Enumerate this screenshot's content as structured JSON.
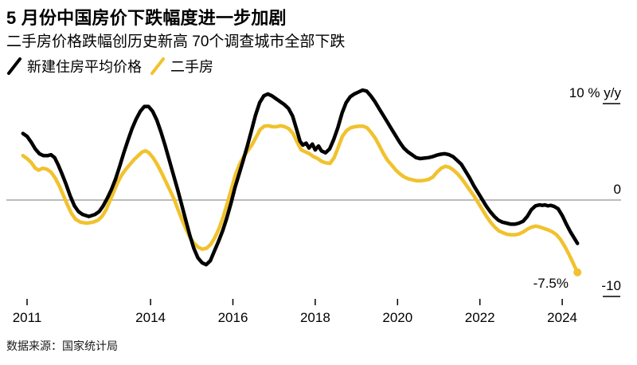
{
  "header": {
    "title": "5 月份中国房价下跌幅度进一步加剧",
    "subtitle": "二手房价格跌幅创历史新高 70个调查城市全部下跌"
  },
  "legend": [
    {
      "label": "新建住房平均价格",
      "color": "#000000"
    },
    {
      "label": "二手房",
      "color": "#f1c22e"
    }
  ],
  "source": "数据来源：国家统计局",
  "colors": {
    "new_home_line": "#000000",
    "secondhand_line": "#f1c22e",
    "zero_line": "#7a7a7a",
    "tick": "#000000",
    "background": "#ffffff"
  },
  "chart_data": {
    "type": "line",
    "title": "5 月份中国房价下跌幅度进一步加剧",
    "subtitle": "二手房价格跌幅创历史新高 70个调查城市全部下跌",
    "xlabel": "",
    "ylabel": "% y/y",
    "grid": false,
    "legend_position": "top-left",
    "xlim": [
      2010.9,
      2024.6
    ],
    "y_axis": {
      "ylim": [
        -10,
        10
      ],
      "ticks": [
        {
          "value": 10,
          "label": "10 % y/y",
          "tick_mark": true
        },
        {
          "value": 0,
          "label": "0",
          "tick_mark": false
        },
        {
          "value": -10,
          "label": "-10",
          "tick_mark": true
        }
      ]
    },
    "x_ticks": [
      2011,
      2014,
      2016,
      2018,
      2020,
      2022,
      2024
    ],
    "annotation": {
      "text": "-7.5%",
      "series": "二手房",
      "year": 2024.37,
      "value": -7.5
    },
    "series": [
      {
        "name": "二手房",
        "color": "#f1c22e",
        "end_dot": true,
        "points": [
          [
            2010.9,
            4.6
          ],
          [
            2011.0,
            4.3
          ],
          [
            2011.1,
            3.9
          ],
          [
            2011.2,
            3.3
          ],
          [
            2011.28,
            3.1
          ],
          [
            2011.38,
            3.3
          ],
          [
            2011.48,
            3.2
          ],
          [
            2011.58,
            2.9
          ],
          [
            2011.68,
            2.3
          ],
          [
            2011.78,
            1.5
          ],
          [
            2011.88,
            0.5
          ],
          [
            2011.98,
            -0.5
          ],
          [
            2012.08,
            -1.4
          ],
          [
            2012.18,
            -2.0
          ],
          [
            2012.3,
            -2.3
          ],
          [
            2012.45,
            -2.4
          ],
          [
            2012.6,
            -2.3
          ],
          [
            2012.72,
            -2.1
          ],
          [
            2012.82,
            -1.7
          ],
          [
            2012.92,
            -1.0
          ],
          [
            2013.0,
            -0.2
          ],
          [
            2013.1,
            0.8
          ],
          [
            2013.2,
            1.8
          ],
          [
            2013.3,
            2.6
          ],
          [
            2013.4,
            3.2
          ],
          [
            2013.5,
            3.7
          ],
          [
            2013.6,
            4.2
          ],
          [
            2013.7,
            4.6
          ],
          [
            2013.8,
            5.0
          ],
          [
            2013.88,
            5.1
          ],
          [
            2013.96,
            4.9
          ],
          [
            2014.06,
            4.4
          ],
          [
            2014.16,
            3.7
          ],
          [
            2014.26,
            2.9
          ],
          [
            2014.36,
            2.0
          ],
          [
            2014.46,
            1.1
          ],
          [
            2014.56,
            0.2
          ],
          [
            2014.66,
            -0.9
          ],
          [
            2014.76,
            -2.0
          ],
          [
            2014.86,
            -3.0
          ],
          [
            2014.96,
            -3.9
          ],
          [
            2015.06,
            -4.5
          ],
          [
            2015.16,
            -4.9
          ],
          [
            2015.26,
            -5.1
          ],
          [
            2015.36,
            -5.0
          ],
          [
            2015.46,
            -4.6
          ],
          [
            2015.56,
            -3.9
          ],
          [
            2015.66,
            -3.0
          ],
          [
            2015.76,
            -1.8
          ],
          [
            2015.86,
            -0.4
          ],
          [
            2015.96,
            1.1
          ],
          [
            2016.06,
            2.6
          ],
          [
            2016.16,
            3.7
          ],
          [
            2016.26,
            4.5
          ],
          [
            2016.36,
            5.1
          ],
          [
            2016.46,
            5.7
          ],
          [
            2016.56,
            6.5
          ],
          [
            2016.66,
            7.3
          ],
          [
            2016.76,
            7.65
          ],
          [
            2016.86,
            7.7
          ],
          [
            2016.96,
            7.6
          ],
          [
            2017.06,
            7.6
          ],
          [
            2017.16,
            7.7
          ],
          [
            2017.26,
            7.6
          ],
          [
            2017.36,
            7.4
          ],
          [
            2017.46,
            6.9
          ],
          [
            2017.56,
            6.0
          ],
          [
            2017.66,
            5.2
          ],
          [
            2017.76,
            5.0
          ],
          [
            2017.86,
            4.8
          ],
          [
            2017.96,
            4.5
          ],
          [
            2018.06,
            4.3
          ],
          [
            2018.16,
            4.0
          ],
          [
            2018.26,
            3.85
          ],
          [
            2018.36,
            3.8
          ],
          [
            2018.46,
            4.4
          ],
          [
            2018.56,
            5.5
          ],
          [
            2018.66,
            6.6
          ],
          [
            2018.76,
            7.2
          ],
          [
            2018.86,
            7.5
          ],
          [
            2018.96,
            7.6
          ],
          [
            2019.06,
            7.65
          ],
          [
            2019.16,
            7.65
          ],
          [
            2019.26,
            7.5
          ],
          [
            2019.36,
            7.0
          ],
          [
            2019.46,
            6.4
          ],
          [
            2019.56,
            5.6
          ],
          [
            2019.66,
            4.8
          ],
          [
            2019.76,
            4.1
          ],
          [
            2019.86,
            3.6
          ],
          [
            2019.96,
            3.1
          ],
          [
            2020.06,
            2.7
          ],
          [
            2020.16,
            2.4
          ],
          [
            2020.26,
            2.2
          ],
          [
            2020.36,
            2.1
          ],
          [
            2020.46,
            2.0
          ],
          [
            2020.56,
            2.0
          ],
          [
            2020.66,
            2.05
          ],
          [
            2020.76,
            2.15
          ],
          [
            2020.86,
            2.4
          ],
          [
            2020.96,
            2.9
          ],
          [
            2021.06,
            3.3
          ],
          [
            2021.16,
            3.5
          ],
          [
            2021.26,
            3.4
          ],
          [
            2021.36,
            3.1
          ],
          [
            2021.46,
            2.7
          ],
          [
            2021.56,
            2.2
          ],
          [
            2021.66,
            1.6
          ],
          [
            2021.76,
            1.0
          ],
          [
            2021.86,
            0.4
          ],
          [
            2021.96,
            -0.3
          ],
          [
            2022.06,
            -1.0
          ],
          [
            2022.16,
            -1.7
          ],
          [
            2022.26,
            -2.3
          ],
          [
            2022.36,
            -2.8
          ],
          [
            2022.46,
            -3.2
          ],
          [
            2022.56,
            -3.4
          ],
          [
            2022.66,
            -3.55
          ],
          [
            2022.76,
            -3.6
          ],
          [
            2022.86,
            -3.6
          ],
          [
            2022.96,
            -3.5
          ],
          [
            2023.06,
            -3.3
          ],
          [
            2023.16,
            -3.0
          ],
          [
            2023.26,
            -2.8
          ],
          [
            2023.36,
            -2.7
          ],
          [
            2023.46,
            -2.8
          ],
          [
            2023.56,
            -2.95
          ],
          [
            2023.66,
            -3.1
          ],
          [
            2023.76,
            -3.3
          ],
          [
            2023.86,
            -3.6
          ],
          [
            2023.96,
            -4.1
          ],
          [
            2024.06,
            -4.8
          ],
          [
            2024.16,
            -5.6
          ],
          [
            2024.26,
            -6.5
          ],
          [
            2024.37,
            -7.5
          ]
        ]
      },
      {
        "name": "新建住房平均价格",
        "color": "#000000",
        "end_dot": false,
        "points": [
          [
            2010.9,
            6.9
          ],
          [
            2011.0,
            6.6
          ],
          [
            2011.1,
            6.0
          ],
          [
            2011.2,
            5.3
          ],
          [
            2011.3,
            4.8
          ],
          [
            2011.4,
            4.6
          ],
          [
            2011.5,
            4.6
          ],
          [
            2011.58,
            4.7
          ],
          [
            2011.67,
            4.4
          ],
          [
            2011.75,
            3.7
          ],
          [
            2011.85,
            2.7
          ],
          [
            2011.95,
            1.6
          ],
          [
            2012.05,
            0.4
          ],
          [
            2012.15,
            -0.6
          ],
          [
            2012.25,
            -1.2
          ],
          [
            2012.35,
            -1.5
          ],
          [
            2012.5,
            -1.7
          ],
          [
            2012.65,
            -1.5
          ],
          [
            2012.75,
            -1.2
          ],
          [
            2012.85,
            -0.6
          ],
          [
            2012.95,
            0.2
          ],
          [
            2013.05,
            1.1
          ],
          [
            2013.15,
            2.2
          ],
          [
            2013.25,
            3.5
          ],
          [
            2013.35,
            4.9
          ],
          [
            2013.45,
            6.2
          ],
          [
            2013.55,
            7.4
          ],
          [
            2013.65,
            8.4
          ],
          [
            2013.75,
            9.2
          ],
          [
            2013.85,
            9.7
          ],
          [
            2013.95,
            9.7
          ],
          [
            2014.05,
            9.2
          ],
          [
            2014.15,
            8.3
          ],
          [
            2014.25,
            7.1
          ],
          [
            2014.35,
            5.7
          ],
          [
            2014.45,
            4.2
          ],
          [
            2014.55,
            2.7
          ],
          [
            2014.65,
            1.2
          ],
          [
            2014.75,
            -0.4
          ],
          [
            2014.85,
            -2.0
          ],
          [
            2014.95,
            -3.6
          ],
          [
            2015.05,
            -5.0
          ],
          [
            2015.15,
            -6.0
          ],
          [
            2015.25,
            -6.5
          ],
          [
            2015.35,
            -6.7
          ],
          [
            2015.45,
            -6.3
          ],
          [
            2015.55,
            -5.3
          ],
          [
            2015.65,
            -4.3
          ],
          [
            2015.75,
            -3.2
          ],
          [
            2015.85,
            -1.9
          ],
          [
            2015.95,
            -0.4
          ],
          [
            2016.05,
            1.3
          ],
          [
            2016.15,
            2.7
          ],
          [
            2016.25,
            4.1
          ],
          [
            2016.35,
            5.6
          ],
          [
            2016.45,
            7.2
          ],
          [
            2016.55,
            8.8
          ],
          [
            2016.65,
            10.1
          ],
          [
            2016.75,
            10.8
          ],
          [
            2016.85,
            11.0
          ],
          [
            2016.95,
            10.8
          ],
          [
            2017.05,
            10.5
          ],
          [
            2017.15,
            10.2
          ],
          [
            2017.25,
            9.9
          ],
          [
            2017.35,
            9.5
          ],
          [
            2017.45,
            8.7
          ],
          [
            2017.55,
            7.3
          ],
          [
            2017.63,
            6.1
          ],
          [
            2017.7,
            5.7
          ],
          [
            2017.78,
            5.9
          ],
          [
            2017.85,
            5.4
          ],
          [
            2017.93,
            5.8
          ],
          [
            2018.0,
            5.2
          ],
          [
            2018.08,
            5.6
          ],
          [
            2018.15,
            5.1
          ],
          [
            2018.25,
            4.9
          ],
          [
            2018.35,
            5.3
          ],
          [
            2018.45,
            6.3
          ],
          [
            2018.55,
            7.5
          ],
          [
            2018.65,
            9.0
          ],
          [
            2018.75,
            10.1
          ],
          [
            2018.85,
            10.7
          ],
          [
            2018.95,
            11.0
          ],
          [
            2019.05,
            11.2
          ],
          [
            2019.15,
            11.4
          ],
          [
            2019.25,
            11.3
          ],
          [
            2019.35,
            10.8
          ],
          [
            2019.45,
            10.2
          ],
          [
            2019.55,
            9.5
          ],
          [
            2019.65,
            8.8
          ],
          [
            2019.75,
            8.1
          ],
          [
            2019.85,
            7.4
          ],
          [
            2019.95,
            6.7
          ],
          [
            2020.05,
            6.0
          ],
          [
            2020.15,
            5.4
          ],
          [
            2020.25,
            5.0
          ],
          [
            2020.35,
            4.7
          ],
          [
            2020.45,
            4.4
          ],
          [
            2020.55,
            4.3
          ],
          [
            2020.65,
            4.35
          ],
          [
            2020.75,
            4.4
          ],
          [
            2020.85,
            4.5
          ],
          [
            2020.95,
            4.65
          ],
          [
            2021.05,
            4.75
          ],
          [
            2021.15,
            4.8
          ],
          [
            2021.25,
            4.7
          ],
          [
            2021.35,
            4.5
          ],
          [
            2021.45,
            4.1
          ],
          [
            2021.55,
            3.7
          ],
          [
            2021.65,
            3.0
          ],
          [
            2021.75,
            2.3
          ],
          [
            2021.85,
            1.5
          ],
          [
            2021.95,
            0.8
          ],
          [
            2022.05,
            0.1
          ],
          [
            2022.15,
            -0.6
          ],
          [
            2022.25,
            -1.2
          ],
          [
            2022.35,
            -1.7
          ],
          [
            2022.45,
            -2.1
          ],
          [
            2022.55,
            -2.3
          ],
          [
            2022.65,
            -2.4
          ],
          [
            2022.75,
            -2.5
          ],
          [
            2022.85,
            -2.5
          ],
          [
            2022.95,
            -2.4
          ],
          [
            2023.05,
            -2.2
          ],
          [
            2023.15,
            -1.7
          ],
          [
            2023.25,
            -1.0
          ],
          [
            2023.35,
            -0.6
          ],
          [
            2023.45,
            -0.5
          ],
          [
            2023.52,
            -0.55
          ],
          [
            2023.58,
            -0.5
          ],
          [
            2023.65,
            -0.6
          ],
          [
            2023.72,
            -0.55
          ],
          [
            2023.8,
            -0.65
          ],
          [
            2023.9,
            -0.9
          ],
          [
            2024.0,
            -1.6
          ],
          [
            2024.1,
            -2.5
          ],
          [
            2024.2,
            -3.3
          ],
          [
            2024.3,
            -4.0
          ],
          [
            2024.37,
            -4.5
          ]
        ]
      }
    ]
  }
}
